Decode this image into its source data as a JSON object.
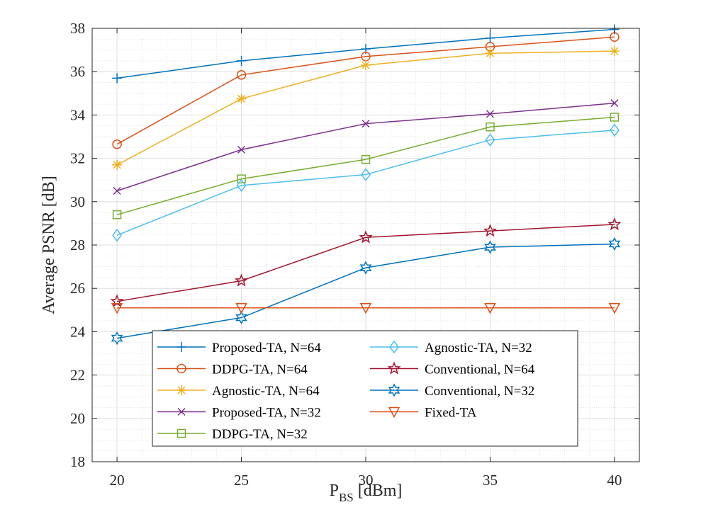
{
  "chart_data": {
    "type": "line",
    "title": "",
    "xlabel": "P",
    "xlabel_sub": "BS",
    "xlabel_unit": " [dBm]",
    "ylabel": "Average PSNR [dB]",
    "x": [
      20,
      25,
      30,
      35,
      40
    ],
    "xlim": [
      19,
      41
    ],
    "ylim": [
      18,
      38
    ],
    "xticks": [
      20,
      25,
      30,
      35,
      40
    ],
    "yticks": [
      18,
      20,
      22,
      24,
      26,
      28,
      30,
      32,
      34,
      36,
      38
    ],
    "grid": true,
    "legend_position": "bottom-center",
    "series": [
      {
        "name": "Proposed-TA, N=64",
        "marker": "plus",
        "color": "#0072BD",
        "values": [
          35.7,
          36.5,
          37.05,
          37.55,
          37.95
        ]
      },
      {
        "name": "DDPG-TA, N=64",
        "marker": "circle",
        "color": "#D95319",
        "values": [
          32.65,
          35.85,
          36.7,
          37.15,
          37.6
        ]
      },
      {
        "name": "Agnostic-TA, N=64",
        "marker": "asterisk",
        "color": "#EDB120",
        "values": [
          31.7,
          34.75,
          36.3,
          36.85,
          36.95
        ]
      },
      {
        "name": "Proposed-TA, N=32",
        "marker": "x",
        "color": "#7E2F8E",
        "values": [
          30.5,
          32.4,
          33.6,
          34.05,
          34.55
        ]
      },
      {
        "name": "DDPG-TA, N=32",
        "marker": "square",
        "color": "#77AC30",
        "values": [
          29.4,
          31.05,
          31.95,
          33.45,
          33.9
        ]
      },
      {
        "name": "Agnostic-TA, N=32",
        "marker": "diamond",
        "color": "#4DBEEE",
        "values": [
          28.45,
          30.75,
          31.25,
          32.85,
          33.3
        ]
      },
      {
        "name": "Conventional, N=64",
        "marker": "pentagram",
        "color": "#A2142F",
        "values": [
          25.4,
          26.35,
          28.35,
          28.65,
          28.95
        ]
      },
      {
        "name": "Conventional, N=32",
        "marker": "hexagram",
        "color": "#0072BD",
        "values": [
          23.7,
          24.65,
          26.95,
          27.9,
          28.05
        ]
      },
      {
        "name": "Fixed-TA",
        "marker": "triangle-down",
        "color": "#D95319",
        "values": [
          25.1,
          25.1,
          25.1,
          25.1,
          25.1
        ]
      }
    ]
  }
}
